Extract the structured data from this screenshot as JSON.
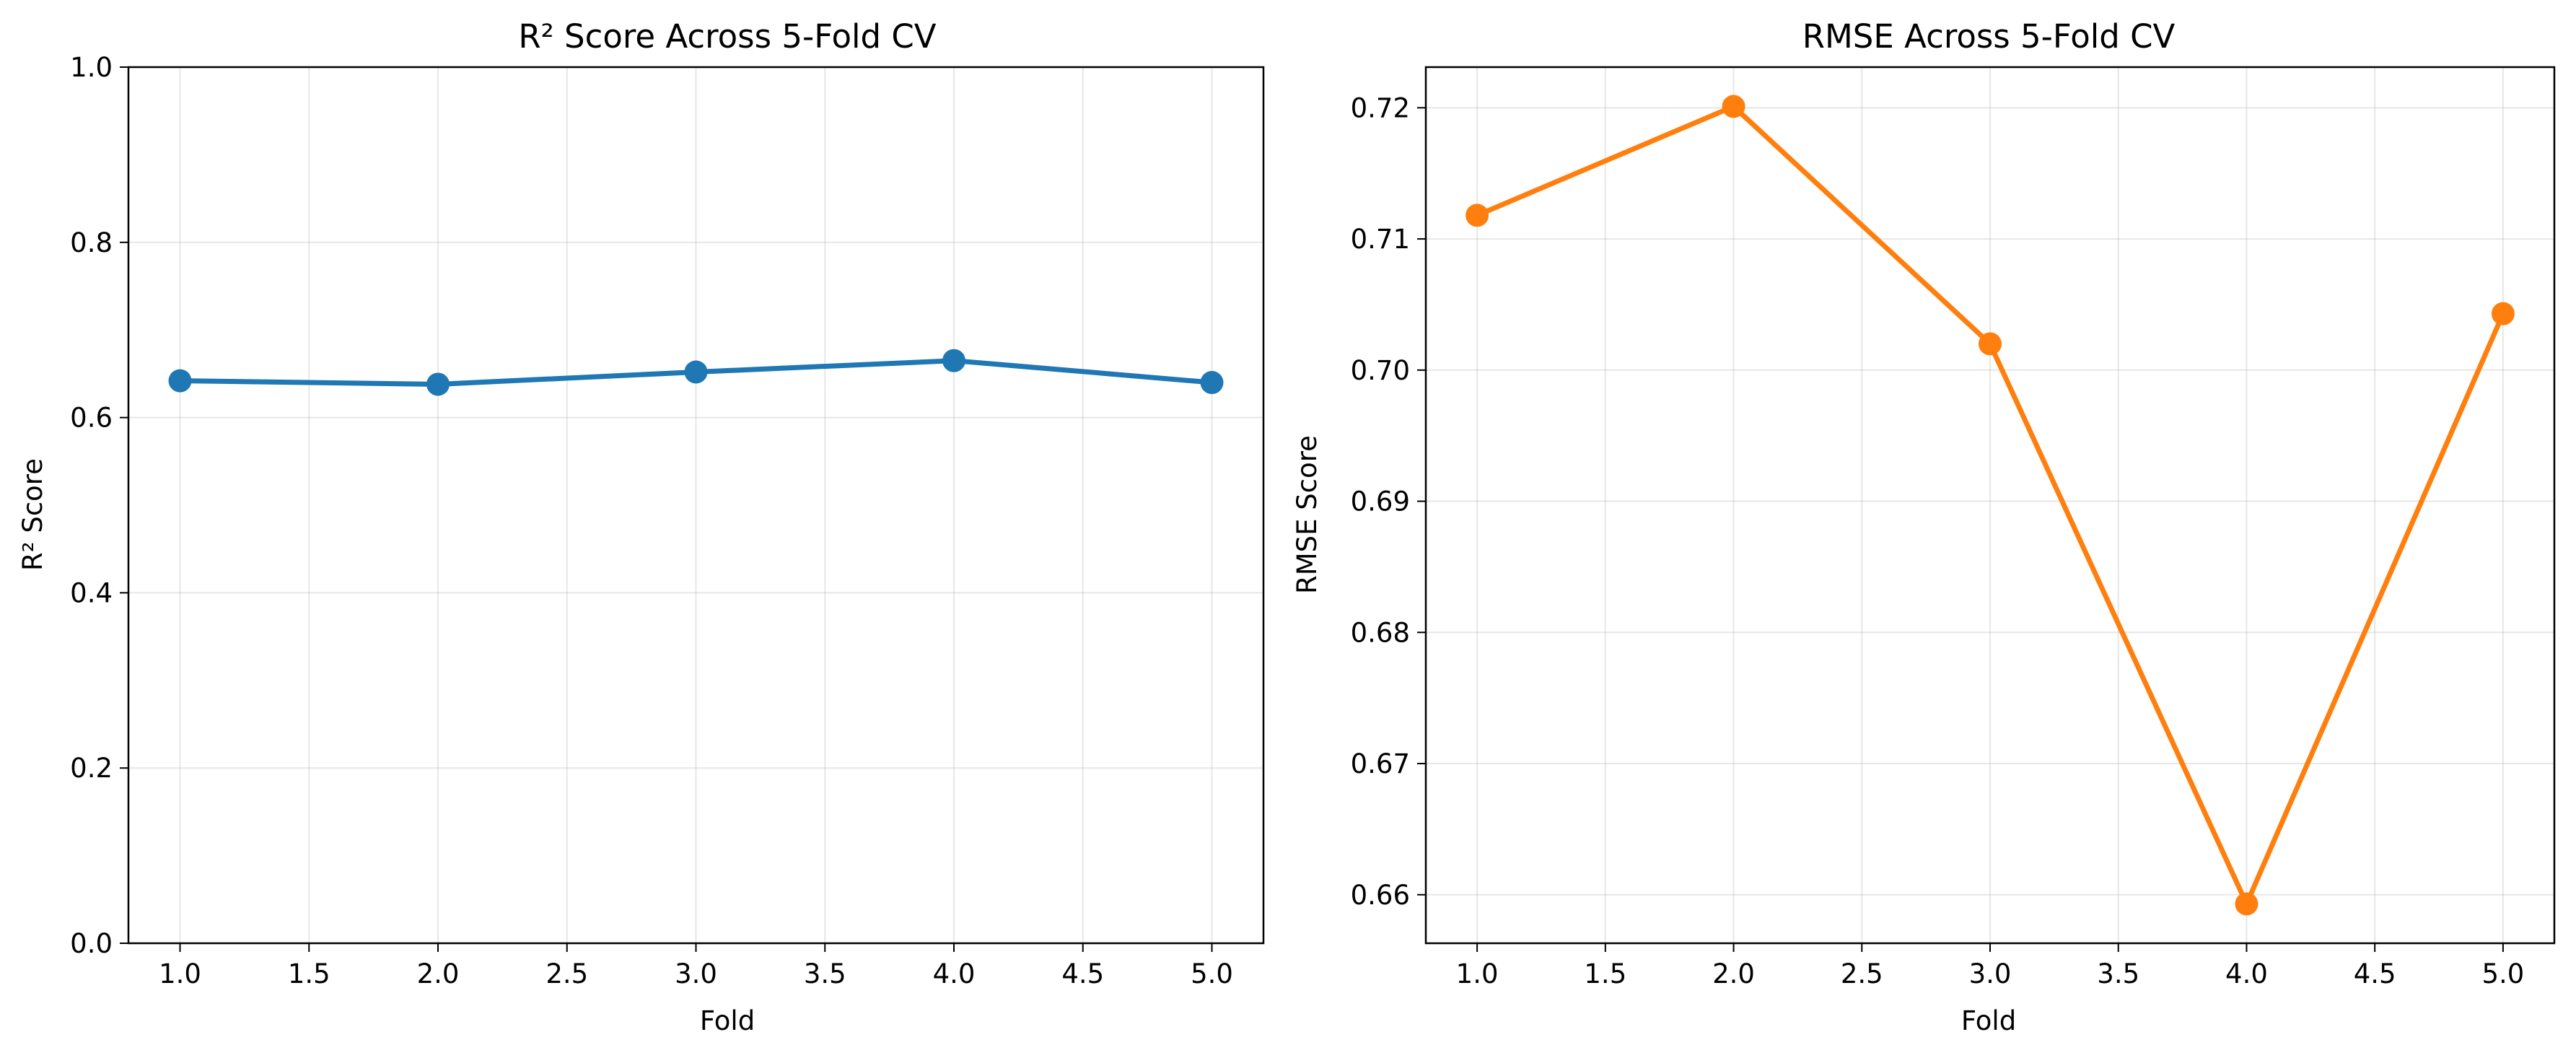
{
  "chart_data": [
    {
      "type": "line",
      "title": "R² Score Across 5-Fold CV",
      "xlabel": "Fold",
      "ylabel": "R² Score",
      "x": [
        1,
        2,
        3,
        4,
        5
      ],
      "series": [
        {
          "values": [
            0.642,
            0.638,
            0.652,
            0.665,
            0.64
          ],
          "color": "#1f77b4"
        }
      ],
      "xlim": [
        0.8,
        5.2
      ],
      "ylim": [
        0.0,
        1.0
      ],
      "xticks": [
        1.0,
        1.5,
        2.0,
        2.5,
        3.0,
        3.5,
        4.0,
        4.5,
        5.0
      ],
      "xtick_labels": [
        "1.0",
        "1.5",
        "2.0",
        "2.5",
        "3.0",
        "3.5",
        "4.0",
        "4.5",
        "5.0"
      ],
      "yticks": [
        0.0,
        0.2,
        0.4,
        0.6,
        0.8,
        1.0
      ],
      "ytick_labels": [
        "0.0",
        "0.2",
        "0.4",
        "0.6",
        "0.8",
        "1.0"
      ],
      "grid": true,
      "marker": "circle"
    },
    {
      "type": "line",
      "title": "RMSE Across 5-Fold CV",
      "xlabel": "Fold",
      "ylabel": "RMSE Score",
      "x": [
        1,
        2,
        3,
        4,
        5
      ],
      "series": [
        {
          "values": [
            0.7118,
            0.7201,
            0.702,
            0.6593,
            0.7043
          ],
          "color": "#ff7f0e"
        }
      ],
      "xlim": [
        0.8,
        5.2
      ],
      "ylim": [
        0.6563,
        0.7231
      ],
      "xticks": [
        1.0,
        1.5,
        2.0,
        2.5,
        3.0,
        3.5,
        4.0,
        4.5,
        5.0
      ],
      "xtick_labels": [
        "1.0",
        "1.5",
        "2.0",
        "2.5",
        "3.0",
        "3.5",
        "4.0",
        "4.5",
        "5.0"
      ],
      "yticks": [
        0.66,
        0.67,
        0.68,
        0.69,
        0.7,
        0.71,
        0.72
      ],
      "ytick_labels": [
        "0.66",
        "0.67",
        "0.68",
        "0.69",
        "0.70",
        "0.71",
        "0.72"
      ],
      "grid": true,
      "marker": "circle"
    }
  ]
}
